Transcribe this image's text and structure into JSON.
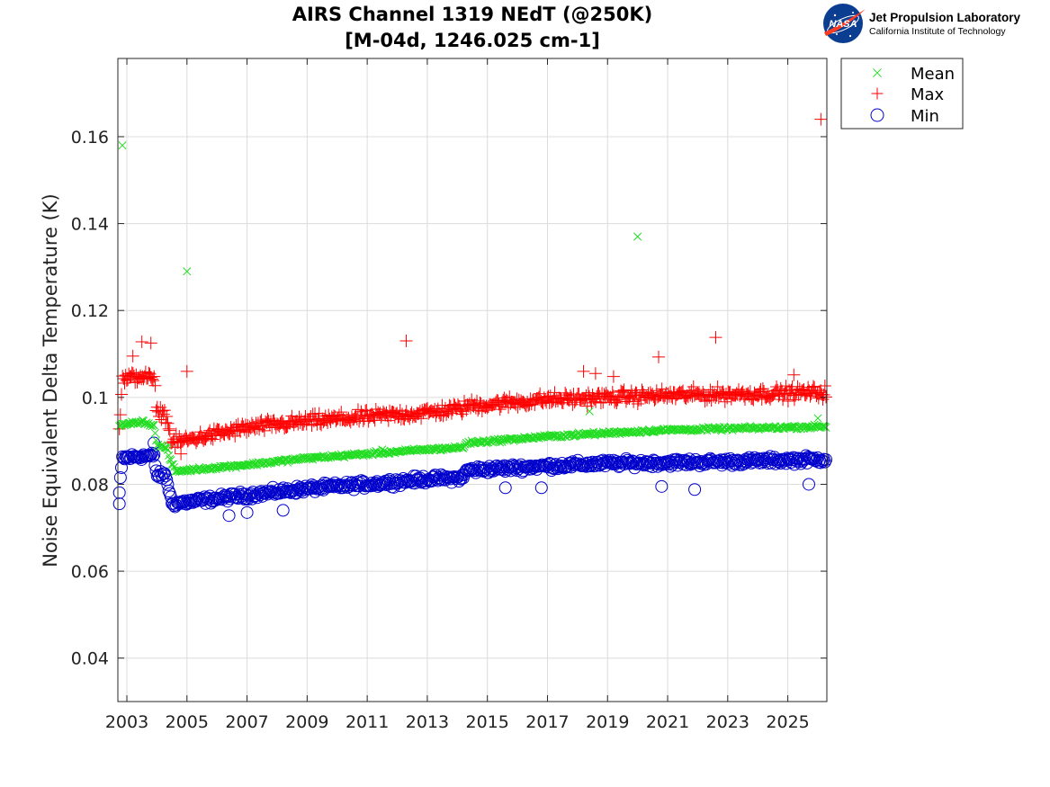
{
  "chart_data": {
    "type": "scatter",
    "title": "AIRS Channel 1319 NEdT (@250K)",
    "subtitle": "[M-04d, 1246.025 cm-1]",
    "xlabel": "",
    "ylabel": "Noise Equivalent Delta Temperature (K)",
    "xlim": [
      2002.7,
      2026.3
    ],
    "ylim": [
      0.03,
      0.178
    ],
    "x_ticks": [
      2003,
      2005,
      2007,
      2009,
      2011,
      2013,
      2015,
      2017,
      2019,
      2021,
      2023,
      2025
    ],
    "x_tick_labels": [
      "2003",
      "2005",
      "2007",
      "2009",
      "2011",
      "2013",
      "2015",
      "2017",
      "2019",
      "2021",
      "2023",
      "2025"
    ],
    "y_ticks": [
      0.04,
      0.06,
      0.08,
      0.1,
      0.12,
      0.14,
      0.16
    ],
    "y_tick_labels": [
      "0.04",
      "0.06",
      "0.08",
      "0.1",
      "0.12",
      "0.14",
      "0.16"
    ],
    "grid": true,
    "legend_position": "outside-top-right",
    "series": [
      {
        "name": "Mean",
        "marker": "x",
        "color": "#22dd22",
        "trend": [
          {
            "x": 2002.75,
            "y": 0.0935
          },
          {
            "x": 2003.5,
            "y": 0.0945
          },
          {
            "x": 2003.9,
            "y": 0.0935
          },
          {
            "x": 2004.0,
            "y": 0.089
          },
          {
            "x": 2004.3,
            "y": 0.0885
          },
          {
            "x": 2004.6,
            "y": 0.083
          },
          {
            "x": 2007,
            "y": 0.0845
          },
          {
            "x": 2009,
            "y": 0.086
          },
          {
            "x": 2011,
            "y": 0.087
          },
          {
            "x": 2013,
            "y": 0.088
          },
          {
            "x": 2014.2,
            "y": 0.0885
          },
          {
            "x": 2014.3,
            "y": 0.0895
          },
          {
            "x": 2017,
            "y": 0.091
          },
          {
            "x": 2019,
            "y": 0.0918
          },
          {
            "x": 2021,
            "y": 0.0925
          },
          {
            "x": 2023,
            "y": 0.0928
          },
          {
            "x": 2026.3,
            "y": 0.0933
          }
        ],
        "spread": 0.0006,
        "outliers": [
          {
            "x": 2002.85,
            "y": 0.158
          },
          {
            "x": 2005.0,
            "y": 0.129
          },
          {
            "x": 2020.0,
            "y": 0.137
          },
          {
            "x": 2011.5,
            "y": 0.088
          },
          {
            "x": 2018.4,
            "y": 0.0968
          },
          {
            "x": 2026.0,
            "y": 0.0952
          }
        ]
      },
      {
        "name": "Max",
        "marker": "+",
        "color": "#ff0000",
        "trend": [
          {
            "x": 2002.75,
            "y": 0.093
          },
          {
            "x": 2002.85,
            "y": 0.104
          },
          {
            "x": 2003.5,
            "y": 0.105
          },
          {
            "x": 2003.9,
            "y": 0.104
          },
          {
            "x": 2004.0,
            "y": 0.097
          },
          {
            "x": 2004.3,
            "y": 0.096
          },
          {
            "x": 2004.5,
            "y": 0.0895
          },
          {
            "x": 2007,
            "y": 0.093
          },
          {
            "x": 2009,
            "y": 0.0945
          },
          {
            "x": 2011,
            "y": 0.0955
          },
          {
            "x": 2013,
            "y": 0.0965
          },
          {
            "x": 2014.2,
            "y": 0.0975
          },
          {
            "x": 2014.3,
            "y": 0.098
          },
          {
            "x": 2017,
            "y": 0.0995
          },
          {
            "x": 2019,
            "y": 0.1
          },
          {
            "x": 2021,
            "y": 0.1005
          },
          {
            "x": 2023,
            "y": 0.1007
          },
          {
            "x": 2026.3,
            "y": 0.1012
          }
        ],
        "spread": 0.0022,
        "outliers": [
          {
            "x": 2026.1,
            "y": 0.164
          },
          {
            "x": 2012.3,
            "y": 0.113
          },
          {
            "x": 2022.6,
            "y": 0.1138
          },
          {
            "x": 2005.0,
            "y": 0.106
          },
          {
            "x": 2020.7,
            "y": 0.1093
          },
          {
            "x": 2003.8,
            "y": 0.1125
          },
          {
            "x": 2003.5,
            "y": 0.1128
          },
          {
            "x": 2003.2,
            "y": 0.1095
          },
          {
            "x": 2018.2,
            "y": 0.106
          },
          {
            "x": 2018.6,
            "y": 0.1055
          },
          {
            "x": 2019.2,
            "y": 0.1048
          },
          {
            "x": 2025.2,
            "y": 0.1052
          },
          {
            "x": 2004.8,
            "y": 0.087
          }
        ]
      },
      {
        "name": "Min",
        "marker": "o",
        "color": "#0000cc",
        "trend": [
          {
            "x": 2002.75,
            "y": 0.078
          },
          {
            "x": 2002.85,
            "y": 0.086
          },
          {
            "x": 2003.5,
            "y": 0.0865
          },
          {
            "x": 2003.9,
            "y": 0.0865
          },
          {
            "x": 2004.0,
            "y": 0.082
          },
          {
            "x": 2004.3,
            "y": 0.082
          },
          {
            "x": 2004.5,
            "y": 0.0755
          },
          {
            "x": 2007,
            "y": 0.0775
          },
          {
            "x": 2009,
            "y": 0.079
          },
          {
            "x": 2011,
            "y": 0.08
          },
          {
            "x": 2013,
            "y": 0.0812
          },
          {
            "x": 2014.2,
            "y": 0.0815
          },
          {
            "x": 2014.3,
            "y": 0.0832
          },
          {
            "x": 2017,
            "y": 0.0842
          },
          {
            "x": 2019,
            "y": 0.0848
          },
          {
            "x": 2021,
            "y": 0.085
          },
          {
            "x": 2023,
            "y": 0.0852
          },
          {
            "x": 2026.3,
            "y": 0.0858
          }
        ],
        "spread": 0.0013,
        "outliers": [
          {
            "x": 2002.75,
            "y": 0.0755
          },
          {
            "x": 2006.4,
            "y": 0.0728
          },
          {
            "x": 2007.0,
            "y": 0.0735
          },
          {
            "x": 2008.2,
            "y": 0.074
          },
          {
            "x": 2021.9,
            "y": 0.0788
          },
          {
            "x": 2020.8,
            "y": 0.0795
          },
          {
            "x": 2015.6,
            "y": 0.0792
          },
          {
            "x": 2025.7,
            "y": 0.08
          },
          {
            "x": 2003.9,
            "y": 0.0895
          },
          {
            "x": 2016.8,
            "y": 0.0792
          }
        ]
      }
    ]
  },
  "logo": {
    "nasa_word": "NASA",
    "org_name": "Jet Propulsion Laboratory",
    "org_sub": "California Institute of Technology"
  },
  "colors": {
    "mean": "#22dd22",
    "max": "#ff0000",
    "min": "#0000cc",
    "grid": "#dcdcdc",
    "axis": "#262626",
    "nasa_blue": "#0b3d91",
    "nasa_red": "#fc3d21"
  }
}
